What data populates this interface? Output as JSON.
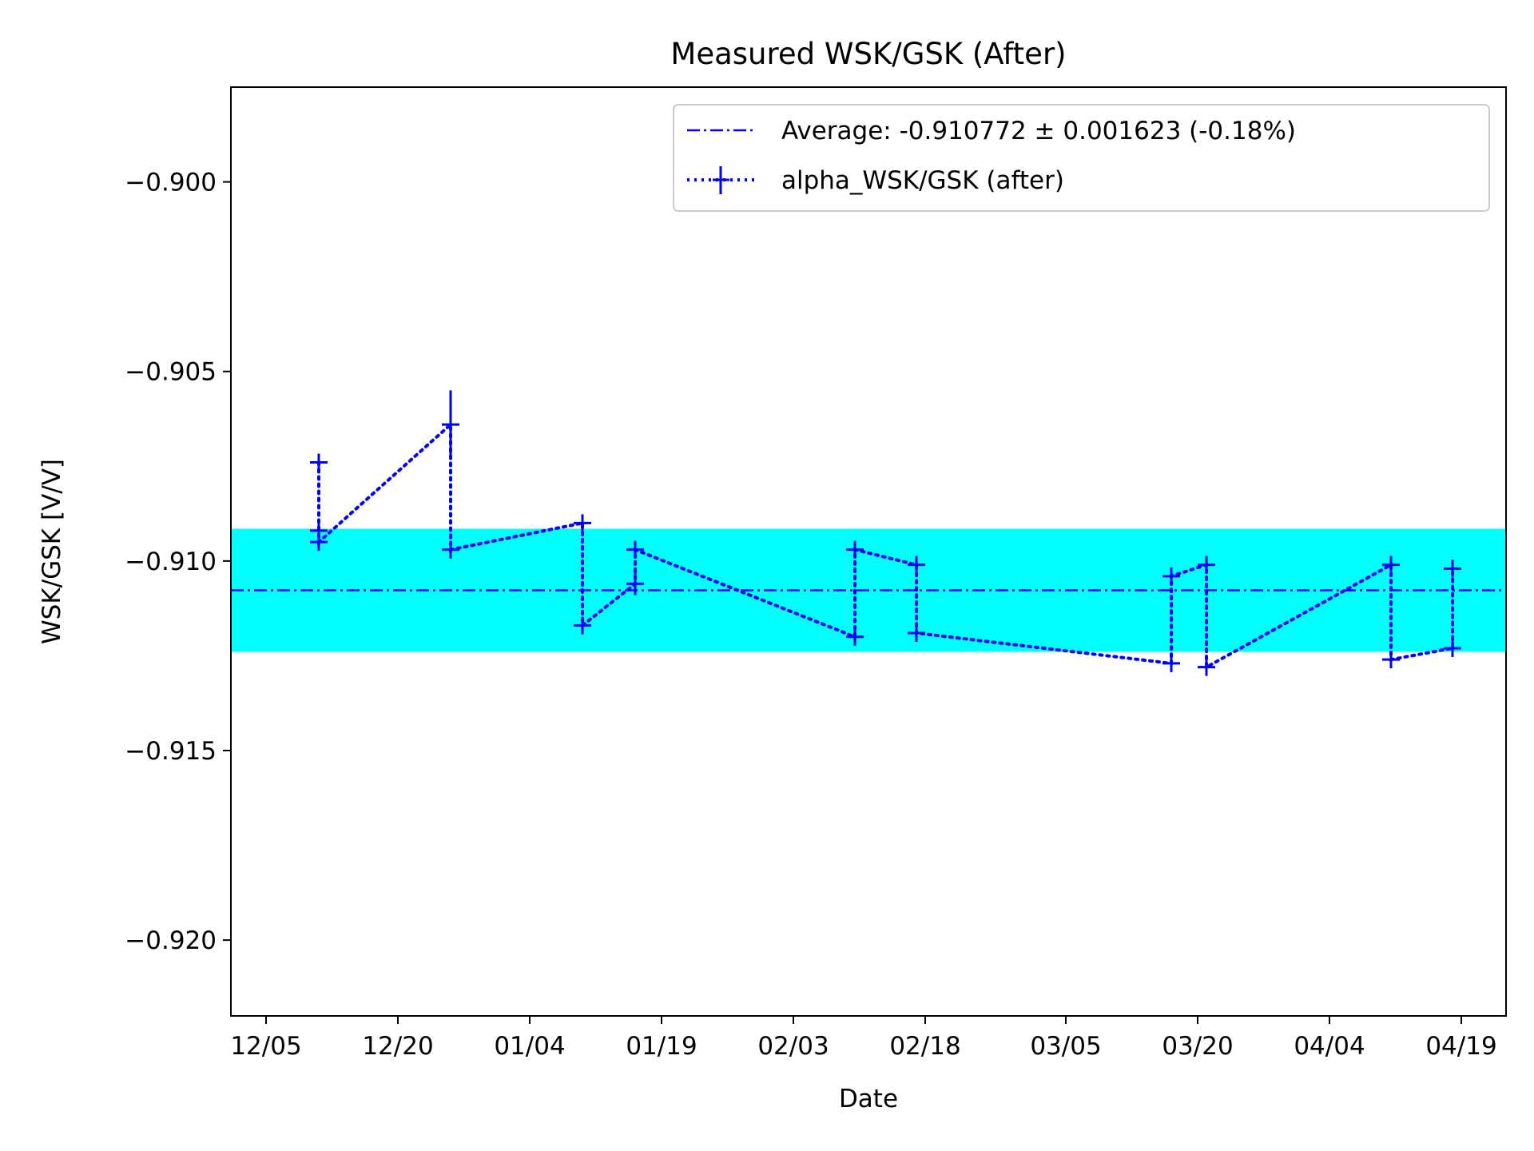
{
  "chart_data": {
    "type": "line",
    "title": "Measured WSK/GSK (After)",
    "xlabel": "Date",
    "ylabel": "WSK/GSK [V/V]",
    "x_tick_labels": [
      "12/05",
      "12/20",
      "01/04",
      "01/19",
      "02/03",
      "02/18",
      "03/05",
      "03/20",
      "04/04",
      "04/19"
    ],
    "y_ticks": [
      -0.9,
      -0.905,
      -0.91,
      -0.915,
      -0.92
    ],
    "y_tick_labels": [
      "−0.900",
      "−0.905",
      "−0.910",
      "−0.915",
      "−0.920"
    ],
    "ylim": [
      -0.922,
      -0.8975
    ],
    "grid": false,
    "legend_position": "top-right",
    "average": {
      "label": "Average: -0.910772 ± 0.001623 (-0.18%)",
      "value": -0.910772,
      "uncertainty": 0.001623,
      "line_color": "#0000ff",
      "band_color": "#00ffff"
    },
    "series": [
      {
        "name": "alpha_WSK/GSK (after)",
        "color": "#0000ff",
        "style": "dotted",
        "marker": "+",
        "points": [
          {
            "x": "12/11",
            "y": -0.9074,
            "err": 0.00015
          },
          {
            "x": "12/11",
            "y": -0.9092,
            "err": 0.00015
          },
          {
            "x": "12/11",
            "y": -0.9095,
            "err": 0.00015
          },
          {
            "x": "12/26",
            "y": -0.9064,
            "err": 0.0009
          },
          {
            "x": "12/26",
            "y": -0.9097,
            "err": 0.0002
          },
          {
            "x": "01/10",
            "y": -0.909,
            "err": 0.0001
          },
          {
            "x": "01/10",
            "y": -0.9117,
            "err": 0.0002
          },
          {
            "x": "01/16",
            "y": -0.9106,
            "err": 0.0003
          },
          {
            "x": "01/16",
            "y": -0.9097,
            "err": 0.0002
          },
          {
            "x": "02/10",
            "y": -0.912,
            "err": 0.0002
          },
          {
            "x": "02/10",
            "y": -0.9097,
            "err": 0.0001
          },
          {
            "x": "02/17",
            "y": -0.9101,
            "err": 0.0001
          },
          {
            "x": "02/17",
            "y": -0.9119,
            "err": 0.0002
          },
          {
            "x": "03/17",
            "y": -0.9127,
            "err": 0.0001
          },
          {
            "x": "03/17",
            "y": -0.9104,
            "err": 0.0002
          },
          {
            "x": "03/21",
            "y": -0.9101,
            "err": 0.0002
          },
          {
            "x": "03/21",
            "y": -0.9128,
            "err": 0.0002
          },
          {
            "x": "04/11",
            "y": -0.9101,
            "err": 0.0002
          },
          {
            "x": "04/11",
            "y": -0.9126,
            "err": 0.0001
          },
          {
            "x": "04/18",
            "y": -0.9123,
            "err": 0.0002
          },
          {
            "x": "04/18",
            "y": -0.9102,
            "err": 0.0001
          }
        ]
      }
    ]
  }
}
